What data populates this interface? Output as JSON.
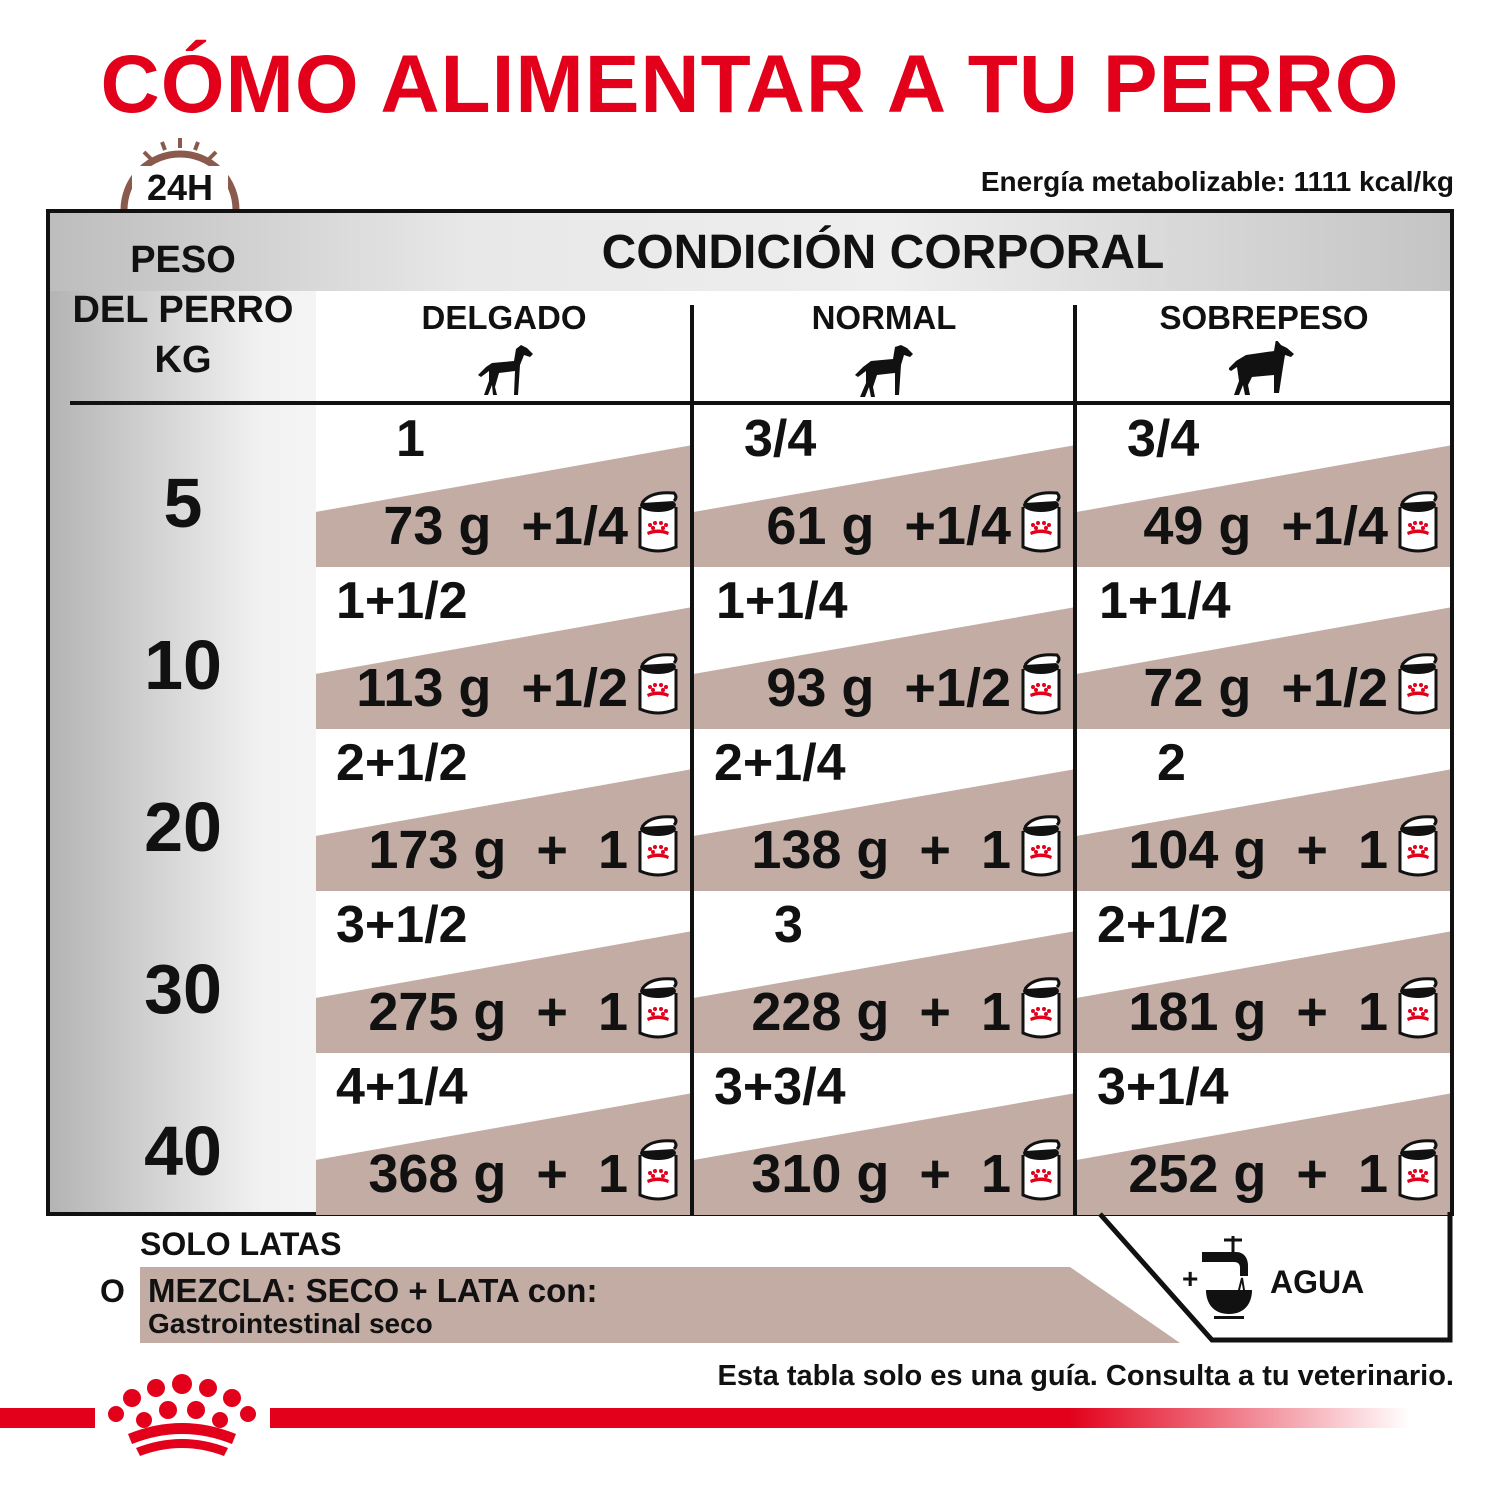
{
  "title": "CÓMO ALIMENTAR A TU PERRO",
  "clock_label": "24H",
  "energy": "Energía metabolizable: 1111 kcal/kg",
  "table": {
    "weight_header": [
      "PESO",
      "DEL PERRO",
      "KG"
    ],
    "condition_header": "CONDICIÓN CORPORAL",
    "columns": [
      "DELGADO",
      "NORMAL",
      "SOBREPESO"
    ],
    "rows": [
      {
        "kg": "5",
        "cells": [
          {
            "dry": "1",
            "wet": "73 g  +1/4"
          },
          {
            "dry": "3/4",
            "wet": "61 g  +1/4"
          },
          {
            "dry": "3/4",
            "wet": "49 g  +1/4"
          }
        ]
      },
      {
        "kg": "10",
        "cells": [
          {
            "dry": "1+1/2",
            "wet": "113 g  +1/2"
          },
          {
            "dry": "1+1/4",
            "wet": "93 g  +1/2"
          },
          {
            "dry": "1+1/4",
            "wet": "72 g  +1/2"
          }
        ]
      },
      {
        "kg": "20",
        "cells": [
          {
            "dry": "2+1/2",
            "wet": "173 g  +  1"
          },
          {
            "dry": "2+1/4",
            "wet": "138 g  +  1"
          },
          {
            "dry": "2",
            "wet": "104 g  +  1"
          }
        ]
      },
      {
        "kg": "30",
        "cells": [
          {
            "dry": "3+1/2",
            "wet": "275 g  +  1"
          },
          {
            "dry": "3",
            "wet": "228 g  +  1"
          },
          {
            "dry": "2+1/2",
            "wet": "181 g  +  1"
          }
        ]
      },
      {
        "kg": "40",
        "cells": [
          {
            "dry": "4+1/4",
            "wet": "368 g  +  1"
          },
          {
            "dry": "3+3/4",
            "wet": "310 g  +  1"
          },
          {
            "dry": "3+1/4",
            "wet": "252 g  +  1"
          }
        ]
      }
    ]
  },
  "legend": {
    "solo": "SOLO LATAS",
    "o": "O",
    "mix": "MEZCLA: SECO + LATA con:",
    "mix_product": "Gastrointestinal seco",
    "water_plus": "+",
    "water": "AGUA"
  },
  "footer": "Esta tabla solo es una guía. Consulta a tu veterinario.",
  "colors": {
    "brand_red": "#e2001a",
    "band": "#c2aca4"
  },
  "icons": [
    "clock-24h-icon",
    "dog-thin-icon",
    "dog-normal-icon",
    "dog-overweight-icon",
    "wet-food-can-icon",
    "water-tap-bowl-icon",
    "royal-canin-crown-logo"
  ]
}
